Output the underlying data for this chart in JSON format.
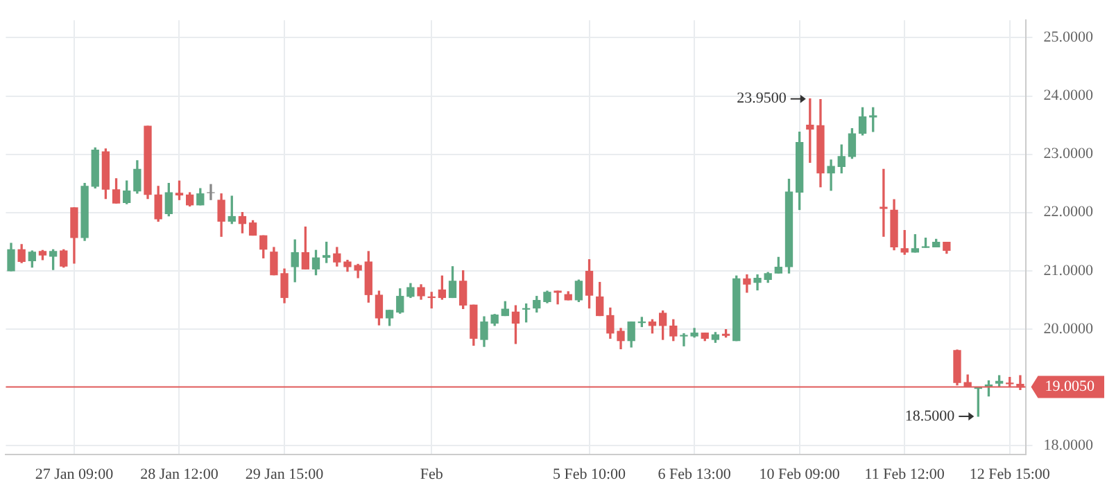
{
  "chart_data": {
    "type": "candlestick",
    "categories": [
      null,
      null,
      null,
      null,
      null,
      null,
      "27 Jan 09:00",
      null,
      null,
      null,
      null,
      null,
      null,
      null,
      null,
      null,
      "28 Jan 12:00",
      null,
      null,
      null,
      null,
      null,
      null,
      null,
      null,
      null,
      "29 Jan 15:00",
      null,
      null,
      null,
      null,
      null,
      null,
      null,
      null,
      null,
      null,
      null,
      null,
      null,
      "Feb",
      null,
      null,
      null,
      null,
      null,
      null,
      null,
      null,
      null,
      null,
      null,
      null,
      null,
      null,
      "5 Feb 10:00",
      null,
      null,
      null,
      null,
      null,
      null,
      null,
      null,
      null,
      "6 Feb 13:00",
      null,
      null,
      null,
      null,
      null,
      null,
      null,
      null,
      null,
      "10 Feb 09:00",
      null,
      null,
      null,
      null,
      null,
      null,
      null,
      null,
      null,
      "11 Feb 12:00",
      null,
      null,
      null,
      null,
      null,
      null,
      null,
      null,
      null,
      "12 Feb 15:00",
      null
    ],
    "ohlc": [
      [
        21.0,
        21.47,
        21.0,
        21.36
      ],
      [
        21.36,
        21.45,
        21.14,
        21.16
      ],
      [
        21.17,
        21.34,
        21.06,
        21.32
      ],
      [
        21.33,
        21.35,
        21.19,
        21.27
      ],
      [
        21.25,
        21.36,
        21.02,
        21.33
      ],
      [
        21.34,
        21.36,
        21.06,
        21.08
      ],
      [
        22.08,
        22.08,
        21.13,
        21.57
      ],
      [
        21.57,
        22.5,
        21.52,
        22.45
      ],
      [
        22.45,
        23.11,
        22.42,
        23.07
      ],
      [
        23.04,
        23.09,
        22.24,
        22.4
      ],
      [
        22.39,
        22.58,
        22.16,
        22.16
      ],
      [
        22.17,
        22.54,
        22.15,
        22.37
      ],
      [
        22.37,
        22.89,
        22.33,
        22.74
      ],
      [
        23.48,
        23.48,
        22.24,
        22.31
      ],
      [
        22.3,
        22.45,
        21.85,
        21.89
      ],
      [
        21.98,
        22.5,
        21.94,
        22.34
      ],
      [
        22.33,
        22.54,
        22.22,
        22.3
      ],
      [
        22.3,
        22.34,
        22.11,
        22.13
      ],
      [
        22.13,
        22.41,
        22.13,
        22.32
      ],
      [
        22.34,
        22.48,
        22.22,
        22.34
      ],
      [
        22.21,
        22.32,
        21.59,
        21.85
      ],
      [
        21.85,
        22.28,
        21.81,
        21.93
      ],
      [
        21.93,
        22.0,
        21.65,
        21.81
      ],
      [
        21.82,
        21.86,
        21.61,
        21.61
      ],
      [
        21.6,
        21.6,
        21.22,
        21.37
      ],
      [
        21.32,
        21.4,
        20.93,
        20.93
      ],
      [
        20.95,
        21.03,
        20.45,
        20.54
      ],
      [
        21.07,
        21.53,
        20.81,
        21.31
      ],
      [
        21.31,
        21.75,
        21.03,
        21.03
      ],
      [
        21.03,
        21.35,
        20.93,
        21.22
      ],
      [
        21.23,
        21.49,
        21.14,
        21.26
      ],
      [
        21.29,
        21.4,
        21.08,
        21.15
      ],
      [
        21.15,
        21.18,
        20.99,
        21.07
      ],
      [
        21.09,
        21.11,
        20.88,
        21.01
      ],
      [
        21.15,
        21.33,
        20.46,
        20.59
      ],
      [
        20.58,
        20.65,
        20.07,
        20.19
      ],
      [
        20.19,
        20.32,
        20.06,
        20.32
      ],
      [
        20.29,
        20.69,
        20.27,
        20.56
      ],
      [
        20.56,
        20.78,
        20.54,
        20.71
      ],
      [
        20.71,
        20.76,
        20.51,
        20.57
      ],
      [
        20.55,
        20.63,
        20.36,
        20.54
      ],
      [
        20.67,
        20.91,
        20.51,
        20.54
      ],
      [
        20.54,
        21.07,
        20.54,
        20.82
      ],
      [
        20.82,
        21.0,
        20.35,
        20.41
      ],
      [
        20.41,
        20.41,
        19.72,
        19.84
      ],
      [
        19.82,
        20.21,
        19.7,
        20.12
      ],
      [
        20.1,
        20.25,
        20.06,
        20.24
      ],
      [
        20.23,
        20.47,
        20.23,
        20.34
      ],
      [
        20.29,
        20.4,
        19.75,
        20.1
      ],
      [
        20.34,
        20.43,
        20.12,
        20.35
      ],
      [
        20.36,
        20.56,
        20.29,
        20.49
      ],
      [
        20.47,
        20.65,
        20.45,
        20.63
      ],
      [
        20.65,
        20.65,
        20.43,
        20.63
      ],
      [
        20.59,
        20.64,
        20.5,
        20.5
      ],
      [
        20.5,
        20.84,
        20.47,
        20.82
      ],
      [
        20.99,
        21.19,
        20.36,
        20.58
      ],
      [
        20.55,
        20.8,
        20.23,
        20.23
      ],
      [
        20.23,
        20.36,
        19.84,
        19.93
      ],
      [
        19.96,
        20.01,
        19.66,
        19.8
      ],
      [
        19.8,
        20.12,
        19.69,
        20.12
      ],
      [
        20.11,
        20.2,
        20.04,
        20.12
      ],
      [
        20.12,
        20.16,
        19.93,
        20.06
      ],
      [
        20.27,
        20.31,
        19.82,
        20.06
      ],
      [
        20.05,
        20.16,
        19.8,
        19.88
      ],
      [
        19.88,
        19.92,
        19.71,
        19.89
      ],
      [
        19.88,
        20.01,
        19.86,
        19.93
      ],
      [
        19.93,
        19.93,
        19.8,
        19.84
      ],
      [
        19.82,
        19.94,
        19.77,
        19.9
      ],
      [
        19.91,
        19.99,
        19.86,
        19.89
      ],
      [
        19.8,
        20.91,
        19.8,
        20.86
      ],
      [
        20.86,
        20.93,
        20.63,
        20.77
      ],
      [
        20.8,
        20.93,
        20.67,
        20.87
      ],
      [
        20.85,
        20.97,
        20.8,
        20.95
      ],
      [
        20.96,
        21.23,
        20.96,
        21.06
      ],
      [
        21.07,
        22.57,
        20.96,
        22.35
      ],
      [
        22.35,
        23.38,
        22.05,
        23.2
      ],
      [
        23.5,
        23.95,
        22.86,
        23.43
      ],
      [
        23.49,
        23.94,
        22.44,
        22.68
      ],
      [
        22.68,
        22.9,
        22.38,
        22.79
      ],
      [
        22.79,
        23.16,
        22.68,
        22.96
      ],
      [
        22.96,
        23.44,
        22.93,
        23.35
      ],
      [
        23.36,
        23.8,
        23.33,
        23.64
      ],
      [
        23.64,
        23.8,
        23.39,
        23.66
      ],
      [
        22.09,
        22.74,
        21.59,
        22.07
      ],
      [
        22.04,
        22.22,
        21.36,
        21.41
      ],
      [
        21.38,
        21.69,
        21.28,
        21.32
      ],
      [
        21.32,
        21.62,
        21.32,
        21.38
      ],
      [
        21.4,
        21.56,
        21.4,
        21.41
      ],
      [
        21.41,
        21.54,
        21.41,
        21.49
      ],
      [
        21.49,
        21.49,
        21.3,
        21.35
      ],
      [
        19.63,
        19.64,
        19.04,
        19.08
      ],
      [
        19.08,
        19.21,
        19.01,
        19.01
      ],
      [
        18.98,
        19.0,
        18.5,
        19.0
      ],
      [
        19.01,
        19.11,
        18.85,
        19.04
      ],
      [
        19.07,
        19.2,
        19.02,
        19.1
      ],
      [
        19.07,
        19.17,
        19.01,
        19.06
      ],
      [
        19.05,
        19.2,
        18.96,
        19.005
      ]
    ],
    "colors": [
      "#5ba883",
      "#e05a5a",
      "#5ba883",
      "#e05a5a",
      "#5ba883",
      "#e05a5a",
      "#e05a5a",
      "#5ba883",
      "#5ba883",
      "#e05a5a",
      "#e05a5a",
      "#5ba883",
      "#5ba883",
      "#e05a5a",
      "#e05a5a",
      "#5ba883",
      "#e05a5a",
      "#e05a5a",
      "#5ba883",
      "#888888",
      "#e05a5a",
      "#5ba883",
      "#e05a5a",
      "#e05a5a",
      "#e05a5a",
      "#e05a5a",
      "#e05a5a",
      "#5ba883",
      "#e05a5a",
      "#5ba883",
      "#5ba883",
      "#e05a5a",
      "#e05a5a",
      "#e05a5a",
      "#e05a5a",
      "#e05a5a",
      "#5ba883",
      "#5ba883",
      "#5ba883",
      "#e05a5a",
      "#e05a5a",
      "#e05a5a",
      "#5ba883",
      "#e05a5a",
      "#e05a5a",
      "#5ba883",
      "#5ba883",
      "#5ba883",
      "#e05a5a",
      "#5ba883",
      "#5ba883",
      "#5ba883",
      "#e05a5a",
      "#e05a5a",
      "#5ba883",
      "#e05a5a",
      "#e05a5a",
      "#e05a5a",
      "#e05a5a",
      "#5ba883",
      "#5ba883",
      "#e05a5a",
      "#e05a5a",
      "#e05a5a",
      "#5ba883",
      "#5ba883",
      "#e05a5a",
      "#5ba883",
      "#e05a5a",
      "#5ba883",
      "#e05a5a",
      "#5ba883",
      "#5ba883",
      "#5ba883",
      "#5ba883",
      "#5ba883",
      "#e05a5a",
      "#e05a5a",
      "#5ba883",
      "#5ba883",
      "#5ba883",
      "#5ba883",
      "#5ba883",
      "#e05a5a",
      "#e05a5a",
      "#e05a5a",
      "#5ba883",
      "#5ba883",
      "#5ba883",
      "#e05a5a",
      "#e05a5a",
      "#e05a5a",
      "#5ba883",
      "#5ba883",
      "#5ba883",
      "#e05a5a",
      "#e05a5a"
    ],
    "ylim": [
      17.85,
      25.3
    ],
    "yticks": [
      {
        "value": 18,
        "label": "18.0000"
      },
      {
        "value": 20,
        "label": "20.0000"
      },
      {
        "value": 21,
        "label": "21.0000"
      },
      {
        "value": 22,
        "label": "22.0000"
      },
      {
        "value": 23,
        "label": "23.0000"
      },
      {
        "value": 24,
        "label": "24.0000"
      },
      {
        "value": 25,
        "label": "25.0000"
      }
    ],
    "grid": true,
    "ref_lines": [
      {
        "axis": "y",
        "value": 19.005,
        "label": "19.0050",
        "color": "#e05a5a"
      }
    ],
    "annotations": [
      "23.9500",
      "18.5000"
    ]
  }
}
